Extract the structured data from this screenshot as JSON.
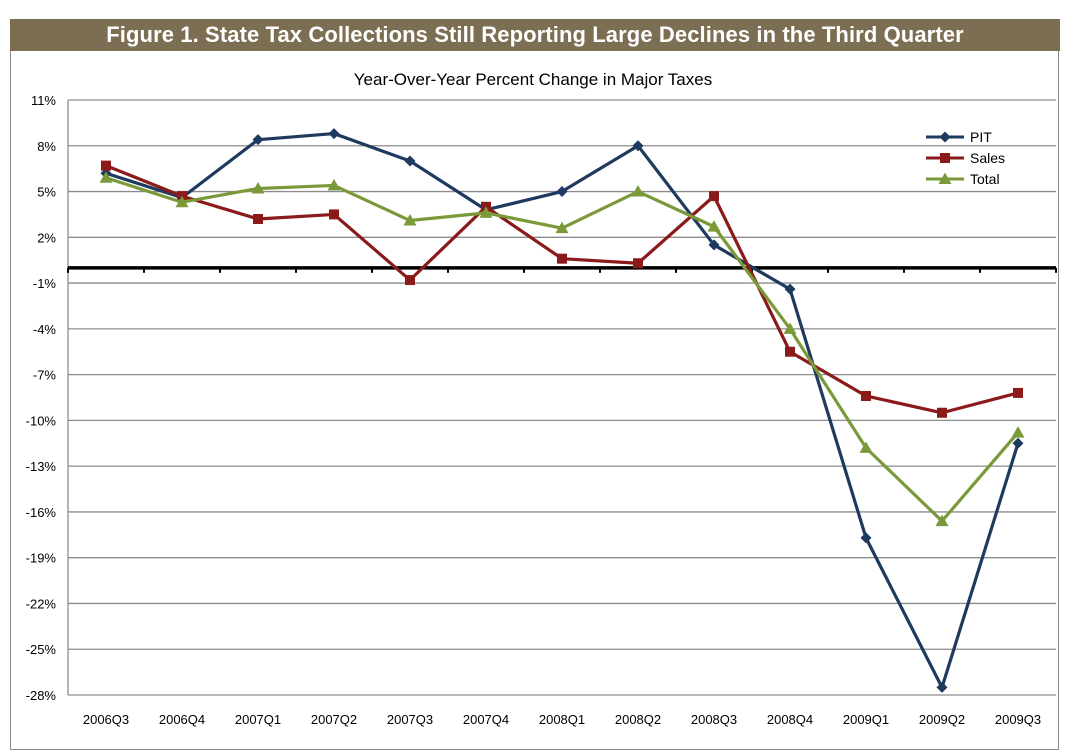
{
  "figure_title": "Figure 1. State Tax Collections Still Reporting Large Declines in the Third Quarter",
  "chart_data": {
    "type": "line",
    "title": "Year-Over-Year Percent Change in Major Taxes",
    "xlabel": "",
    "ylabel": "",
    "categories": [
      "2006Q3",
      "2006Q4",
      "2007Q1",
      "2007Q2",
      "2007Q3",
      "2007Q4",
      "2008Q1",
      "2008Q2",
      "2008Q3",
      "2008Q4",
      "2009Q1",
      "2009Q2",
      "2009Q3"
    ],
    "ylim": [
      -28,
      11
    ],
    "yticks": [
      11,
      8,
      5,
      2,
      -1,
      -4,
      -7,
      -10,
      -13,
      -16,
      -19,
      -22,
      -25,
      -28
    ],
    "ytick_labels": [
      "11%",
      "8%",
      "5%",
      "2%",
      "-1%",
      "-4%",
      "-7%",
      "-10%",
      "-13%",
      "-16%",
      "-19%",
      "-22%",
      "-25%",
      "-28%"
    ],
    "zero_line": 0,
    "grid": true,
    "legend_position": "top-right",
    "series": [
      {
        "name": "PIT",
        "color": "#1f3a5f",
        "marker": "diamond",
        "values": [
          6.2,
          4.6,
          8.4,
          8.8,
          7.0,
          3.8,
          5.0,
          8.0,
          1.5,
          -1.4,
          -17.7,
          -27.5,
          -11.5
        ]
      },
      {
        "name": "Sales",
        "color": "#8b1a1a",
        "marker": "square",
        "values": [
          6.7,
          4.7,
          3.2,
          3.5,
          -0.8,
          4.0,
          0.6,
          0.3,
          4.7,
          -5.5,
          -8.4,
          -9.5,
          -8.2
        ]
      },
      {
        "name": "Total",
        "color": "#7a9a3a",
        "marker": "triangle",
        "values": [
          5.9,
          4.3,
          5.2,
          5.4,
          3.1,
          3.6,
          2.6,
          5.0,
          2.7,
          -4.0,
          -11.8,
          -16.6,
          -10.8
        ]
      }
    ]
  }
}
